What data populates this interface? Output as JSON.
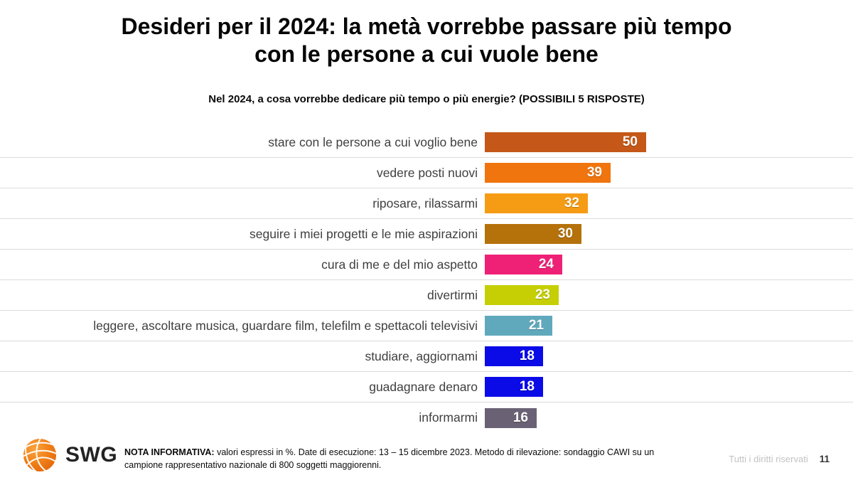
{
  "header": {
    "title": "Desideri per il 2024: la metà vorrebbe passare più tempo\ncon le persone a cui vuole bene",
    "question": "Nel 2024, a cosa vorrebbe dedicare più tempo o più energie? (POSSIBILI 5 RISPOSTE)"
  },
  "chart_data": {
    "type": "bar",
    "orientation": "horizontal",
    "title": "Nel 2024, a cosa vorrebbe dedicare più tempo o più energie? (POSSIBILI 5 RISPOSTE)",
    "unit": "%",
    "categories": [
      "stare con le persone a cui voglio bene",
      "vedere posti nuovi",
      "riposare, rilassarmi",
      "seguire i miei progetti e le mie aspirazioni",
      "cura di me e del mio aspetto",
      "divertirmi",
      "leggere, ascoltare musica, guardare film, telefilm e spettacoli televisivi",
      "studiare, aggiornami",
      "guadagnare denaro",
      "informarmi"
    ],
    "values": [
      50,
      39,
      32,
      30,
      24,
      23,
      21,
      18,
      18,
      16
    ],
    "bar_colors": [
      "#C55818",
      "#F1750E",
      "#F59C14",
      "#B5710A",
      "#EE2177",
      "#C5CF04",
      "#60A9BD",
      "#0B0BE8",
      "#0B0BE8",
      "#6A6274"
    ],
    "value_label_color": "#FFFFFF",
    "value_label_position": "inside-end",
    "row_separator_color": "#DBDBDB",
    "gridlines": false,
    "legend": false,
    "max_value": 50
  },
  "footer": {
    "logo_text": "SWG",
    "logo_color": "#EF7D15",
    "note_label": "NOTA INFORMATIVA:",
    "note_text": " valori espressi in %. Date di esecuzione: 13 – 15 dicembre 2023. Metodo di rilevazione: sondaggio CAWI su un campione rappresentativo nazionale di 800 soggetti maggiorenni.",
    "rights": "Tutti i diritti riservati",
    "page_number": "11"
  }
}
